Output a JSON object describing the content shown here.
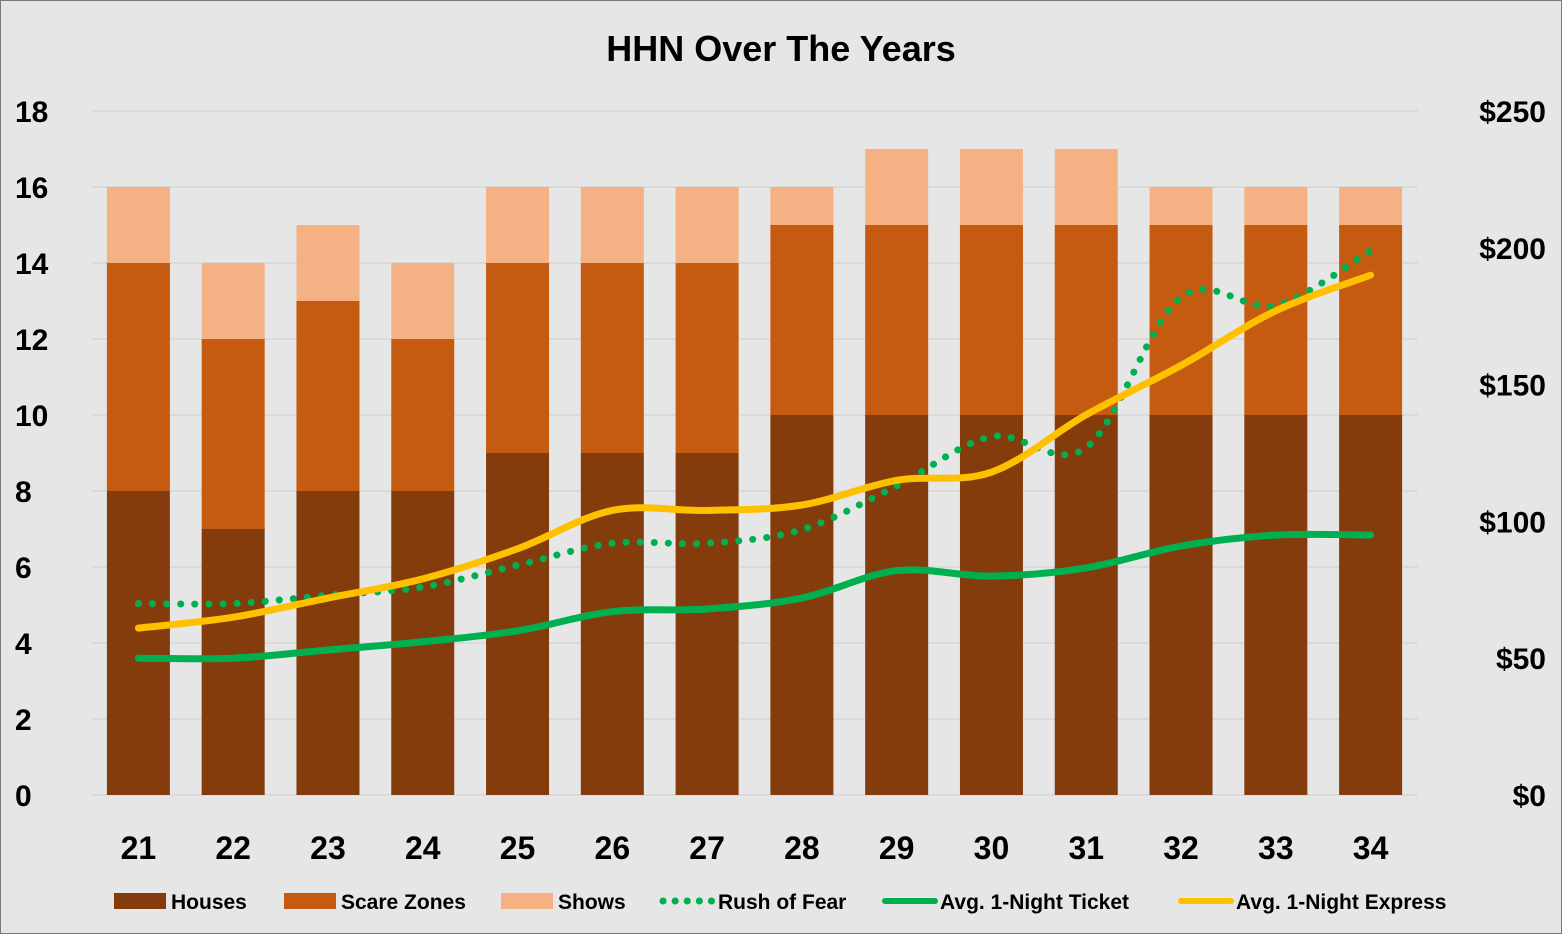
{
  "chart_data": {
    "type": "bar",
    "title": "HHN Over The Years",
    "categories": [
      "21",
      "22",
      "23",
      "24",
      "25",
      "26",
      "27",
      "28",
      "29",
      "30",
      "31",
      "32",
      "33",
      "34"
    ],
    "ylim": [
      0,
      18
    ],
    "yticks": [
      "0",
      "2",
      "4",
      "6",
      "8",
      "10",
      "12",
      "14",
      "16",
      "18"
    ],
    "y2lim": [
      0,
      250
    ],
    "y2ticks": [
      "$0",
      "$50",
      "$100",
      "$150",
      "$200",
      "$250"
    ],
    "grid": true,
    "legend_position": "bottom",
    "bar_series": [
      {
        "name": "Houses",
        "color": "#843c0c",
        "values": [
          8,
          7,
          8,
          8,
          9,
          9,
          9,
          10,
          10,
          10,
          10,
          10,
          10,
          10
        ]
      },
      {
        "name": "Scare Zones",
        "color": "#c55a11",
        "values": [
          6,
          5,
          5,
          4,
          5,
          5,
          5,
          5,
          5,
          5,
          5,
          5,
          5,
          5
        ]
      },
      {
        "name": "Shows",
        "color": "#f4b183",
        "values": [
          2,
          2,
          2,
          2,
          2,
          2,
          2,
          1,
          2,
          2,
          2,
          1,
          1,
          1
        ]
      }
    ],
    "line_series": [
      {
        "name": "Rush of Fear",
        "color": "#00b050",
        "style": "dotted",
        "axis": "right",
        "values": [
          70,
          70,
          73,
          76,
          84,
          92,
          92,
          97,
          113,
          131,
          127,
          182,
          179,
          199
        ]
      },
      {
        "name": "Avg. 1-Night Ticket",
        "color": "#00b050",
        "style": "solid",
        "axis": "right",
        "values": [
          50,
          50,
          53,
          56,
          60,
          67,
          68,
          72,
          82,
          80,
          83,
          91,
          95,
          95
        ]
      },
      {
        "name": "Avg. 1-Night Express",
        "color": "#ffc000",
        "style": "solid",
        "axis": "right",
        "values": [
          61,
          65,
          72,
          79,
          90,
          104,
          104,
          106,
          115,
          118,
          139,
          157,
          177,
          190
        ]
      }
    ]
  }
}
